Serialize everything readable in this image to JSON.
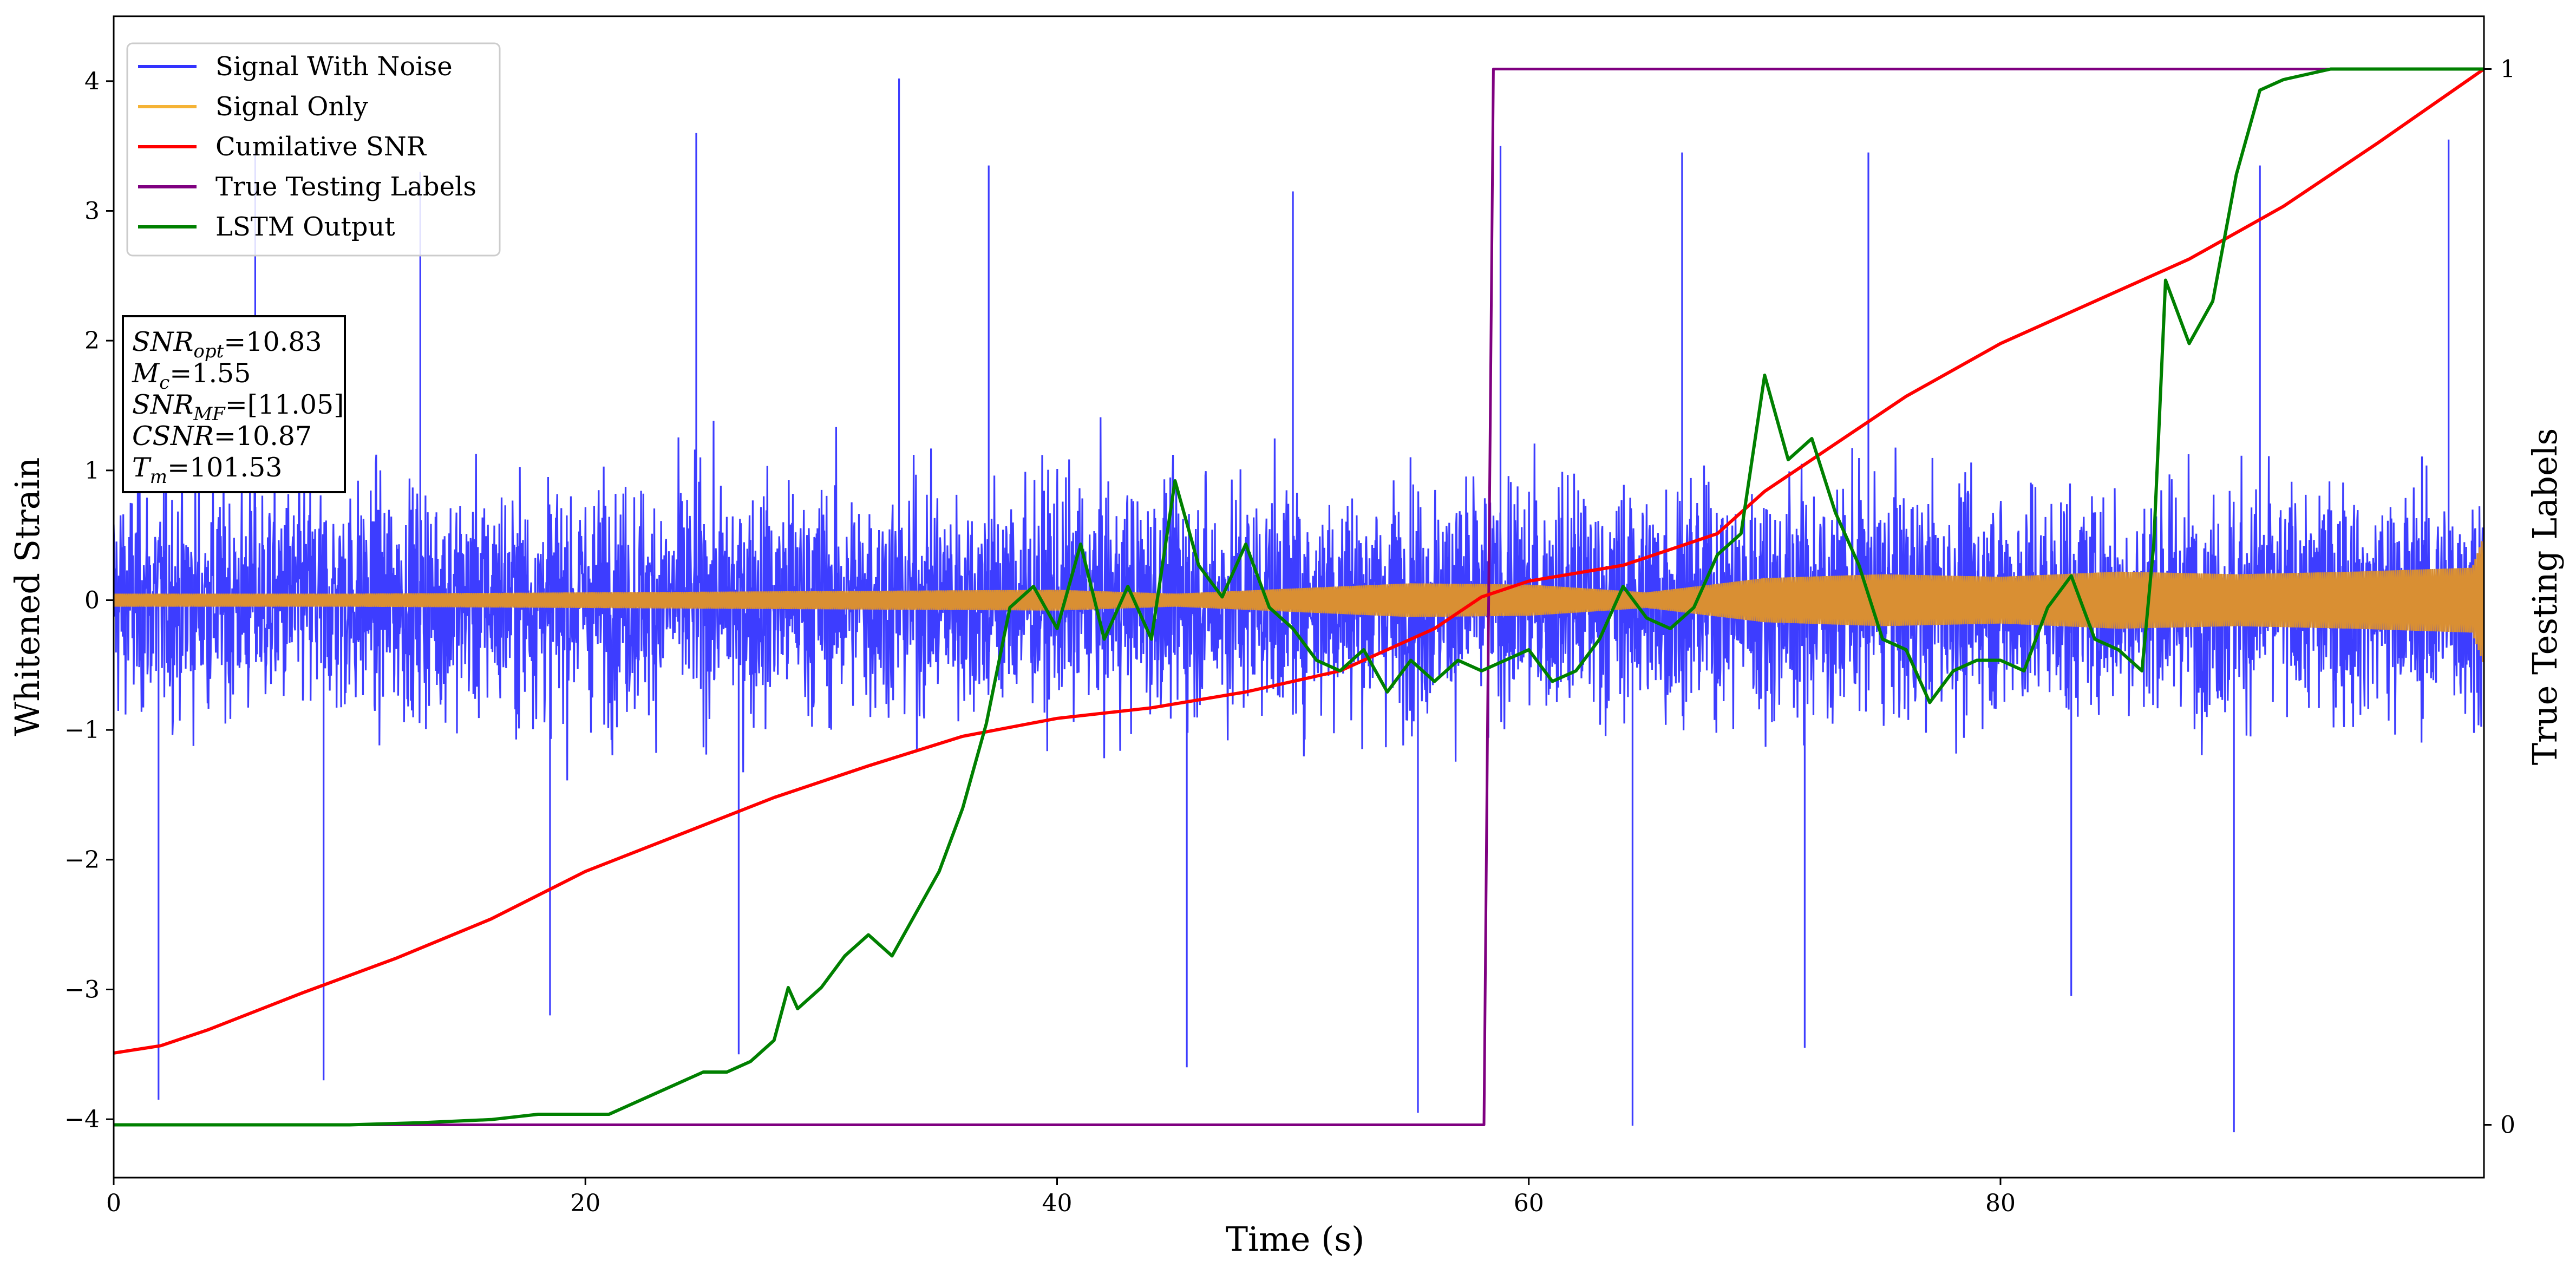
{
  "chart_data": {
    "type": "line",
    "xlabel": "Time (s)",
    "ylabel": "Whitened Strain",
    "ylabel_right": "True Testing Labels",
    "xlim": [
      0,
      100.5
    ],
    "ylim": [
      -4.45,
      4.5
    ],
    "ylim_right": [
      -0.05,
      1.05
    ],
    "xticks": [
      0,
      20,
      40,
      60,
      80
    ],
    "xtick_labels": [
      "0",
      "20",
      "40",
      "60",
      "80"
    ],
    "yticks": [
      -4,
      -3,
      -2,
      -1,
      0,
      1,
      2,
      3,
      4
    ],
    "ytick_labels": [
      "−4",
      "−3",
      "−2",
      "−1",
      "0",
      "1",
      "2",
      "3",
      "4"
    ],
    "yticks_right": [
      0,
      1
    ],
    "ytick_labels_right": [
      "0",
      "1"
    ],
    "grid": false,
    "legend_position": "top-left",
    "series": [
      {
        "name": "Signal With Noise",
        "axis": "left",
        "color": "#3333ff",
        "style": "dense noise band",
        "typical_range": [
          -1.2,
          1.2
        ],
        "spikes": [
          {
            "x": 1.9,
            "y": -3.85
          },
          {
            "x": 6.0,
            "y": 3.45
          },
          {
            "x": 8.9,
            "y": -3.7
          },
          {
            "x": 13.0,
            "y": 3.3
          },
          {
            "x": 18.5,
            "y": -3.2
          },
          {
            "x": 24.7,
            "y": 3.6
          },
          {
            "x": 26.5,
            "y": -3.5
          },
          {
            "x": 33.3,
            "y": 4.02
          },
          {
            "x": 37.1,
            "y": 3.35
          },
          {
            "x": 45.5,
            "y": -3.6
          },
          {
            "x": 50.0,
            "y": 3.15
          },
          {
            "x": 55.3,
            "y": -3.95
          },
          {
            "x": 58.8,
            "y": 3.5
          },
          {
            "x": 64.4,
            "y": -4.05
          },
          {
            "x": 66.5,
            "y": 3.45
          },
          {
            "x": 71.7,
            "y": -3.45
          },
          {
            "x": 74.4,
            "y": 3.45
          },
          {
            "x": 83.0,
            "y": -3.05
          },
          {
            "x": 89.9,
            "y": -4.1
          },
          {
            "x": 91.0,
            "y": 3.35
          },
          {
            "x": 99.0,
            "y": 3.55
          }
        ]
      },
      {
        "name": "Signal Only",
        "axis": "left",
        "color": "#f5b335",
        "style": "chirp envelope",
        "x": [
          0,
          10,
          20,
          30,
          40,
          45,
          50,
          55,
          60,
          65,
          70,
          75,
          80,
          85,
          90,
          95,
          100,
          100.5
        ],
        "amplitude": [
          0.05,
          0.05,
          0.06,
          0.07,
          0.08,
          0.05,
          0.09,
          0.13,
          0.12,
          0.06,
          0.17,
          0.2,
          0.18,
          0.22,
          0.2,
          0.22,
          0.25,
          0.5
        ]
      },
      {
        "name": "Cumilative SNR",
        "axis": "right",
        "color": "#ff0000",
        "x": [
          0,
          2,
          4,
          8,
          12,
          16,
          20,
          24,
          28,
          32,
          36,
          40,
          44,
          48,
          52,
          56,
          58,
          60,
          64,
          66,
          68,
          70,
          72,
          76,
          80,
          84,
          88,
          92,
          96,
          100.5
        ],
        "y": [
          0.068,
          0.075,
          0.09,
          0.125,
          0.158,
          0.195,
          0.24,
          0.275,
          0.31,
          0.34,
          0.368,
          0.385,
          0.395,
          0.41,
          0.43,
          0.47,
          0.5,
          0.515,
          0.53,
          0.545,
          0.56,
          0.6,
          0.63,
          0.69,
          0.74,
          0.78,
          0.82,
          0.87,
          0.93,
          1.0
        ]
      },
      {
        "name": "True Testing Labels",
        "axis": "right",
        "color": "#7f0080",
        "x": [
          0,
          58.1,
          58.5,
          100.5
        ],
        "y": [
          0,
          0,
          1,
          1
        ]
      },
      {
        "name": "LSTM Output",
        "axis": "right",
        "color": "#008000",
        "x": [
          0,
          10,
          13,
          16,
          18,
          20,
          21,
          22,
          24,
          25,
          26,
          27,
          28,
          28.6,
          29,
          30,
          31,
          32,
          33,
          34,
          35,
          36,
          37,
          38,
          39,
          40,
          41,
          42,
          43,
          44,
          45,
          46,
          47,
          48,
          49,
          50,
          51,
          52,
          53,
          54,
          55,
          56,
          57,
          58,
          59,
          60,
          61,
          62,
          63,
          64,
          65,
          66,
          67,
          68,
          69,
          70,
          71,
          72,
          73,
          74,
          75,
          76,
          77,
          78,
          79,
          80,
          81,
          82,
          83,
          84,
          85,
          86,
          86.5,
          87,
          88,
          89,
          90,
          91,
          92,
          94,
          96,
          100.5
        ],
        "y": [
          0,
          0,
          0.002,
          0.005,
          0.01,
          0.01,
          0.01,
          0.02,
          0.04,
          0.05,
          0.05,
          0.06,
          0.08,
          0.13,
          0.11,
          0.13,
          0.16,
          0.18,
          0.16,
          0.2,
          0.24,
          0.3,
          0.38,
          0.49,
          0.51,
          0.47,
          0.55,
          0.46,
          0.51,
          0.46,
          0.61,
          0.53,
          0.5,
          0.55,
          0.49,
          0.47,
          0.44,
          0.43,
          0.45,
          0.41,
          0.44,
          0.42,
          0.44,
          0.43,
          0.44,
          0.45,
          0.42,
          0.43,
          0.46,
          0.51,
          0.48,
          0.47,
          0.49,
          0.54,
          0.56,
          0.71,
          0.63,
          0.65,
          0.58,
          0.53,
          0.46,
          0.45,
          0.4,
          0.43,
          0.44,
          0.44,
          0.43,
          0.49,
          0.52,
          0.46,
          0.45,
          0.43,
          0.55,
          0.8,
          0.74,
          0.78,
          0.9,
          0.98,
          0.99,
          1.0,
          1.0,
          1.0
        ]
      }
    ]
  },
  "info_box": {
    "snr_opt_base": "SNR",
    "snr_opt_sub": "opt",
    "snr_opt_value": "=10.83",
    "mc_base": "M",
    "mc_sub": "c",
    "mc_value": "=1.55",
    "snr_mf_base": "SNR",
    "snr_mf_sub": "MF",
    "snr_mf_value": "=[11.05]",
    "csnr_base": "CSNR",
    "csnr_value": "=10.87",
    "tm_base": "T",
    "tm_sub": "m",
    "tm_value": "=101.53"
  }
}
